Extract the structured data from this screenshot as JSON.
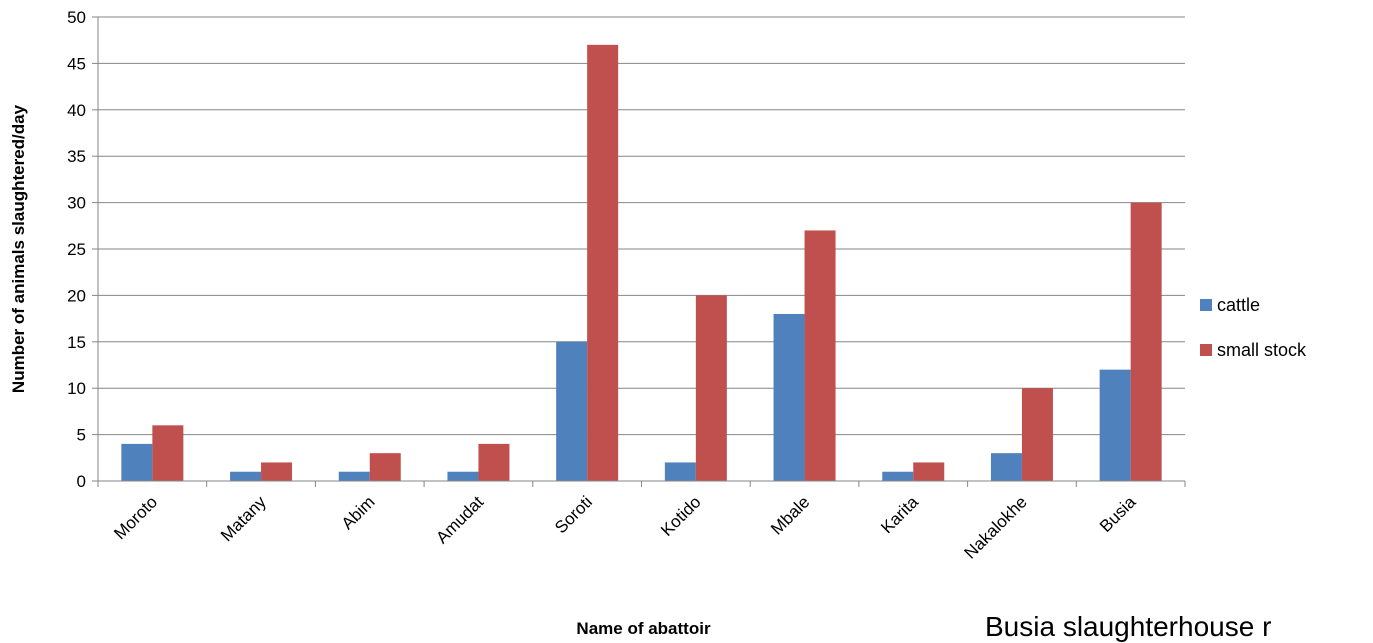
{
  "chart_data": {
    "type": "bar",
    "title": "",
    "xlabel": "Name of abattoir",
    "ylabel": "Number of animals slaughtered/day",
    "ylim": [
      0,
      50
    ],
    "ytick_step": 5,
    "categories": [
      "Moroto",
      "Matany",
      "Abim",
      "Amudat",
      "Soroti",
      "Kotido",
      "Mbale",
      "Karita",
      "Nakalokhe",
      "Busia"
    ],
    "series": [
      {
        "name": "cattle",
        "color": "#4F81BD",
        "values": [
          4,
          1,
          1,
          1,
          15,
          2,
          18,
          1,
          3,
          12
        ]
      },
      {
        "name": "small stock",
        "color": "#C0504D",
        "values": [
          6,
          2,
          3,
          4,
          47,
          20,
          27,
          2,
          10,
          30
        ]
      }
    ],
    "grid": true,
    "legend_position": "right"
  },
  "annotation": "Busia slaughterhouse r"
}
